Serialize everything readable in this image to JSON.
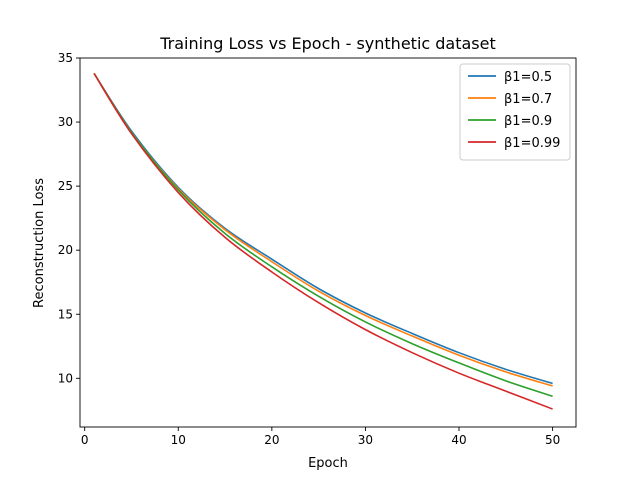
{
  "chart_data": {
    "type": "line",
    "title": "Training Loss vs Epoch - synthetic dataset",
    "xlabel": "Epoch",
    "ylabel": "Reconstruction Loss",
    "xlim": [
      -0.5,
      52.5
    ],
    "ylim": [
      6.2,
      35
    ],
    "xticks": [
      0,
      10,
      20,
      30,
      40,
      50
    ],
    "yticks": [
      10,
      15,
      20,
      25,
      30,
      35
    ],
    "grid": false,
    "legend_position": "top-right",
    "x": [
      1,
      5,
      10,
      15,
      20,
      25,
      30,
      35,
      40,
      45,
      50
    ],
    "series": [
      {
        "name": "β1=0.5",
        "color": "#1f77b4",
        "values": [
          33.8,
          29.3,
          24.9,
          21.7,
          19.3,
          17.0,
          15.1,
          13.5,
          12.0,
          10.7,
          9.6
        ]
      },
      {
        "name": "β1=0.7",
        "color": "#ff7f0e",
        "values": [
          33.8,
          29.2,
          24.8,
          21.6,
          19.1,
          16.8,
          14.9,
          13.3,
          11.8,
          10.5,
          9.4
        ]
      },
      {
        "name": "β1=0.9",
        "color": "#2ca02c",
        "values": [
          33.8,
          29.2,
          24.7,
          21.3,
          18.7,
          16.4,
          14.4,
          12.7,
          11.2,
          9.8,
          8.6
        ]
      },
      {
        "name": "β1=0.99",
        "color": "#d62728",
        "values": [
          33.8,
          29.1,
          24.5,
          21.0,
          18.3,
          15.9,
          13.8,
          12.0,
          10.4,
          9.0,
          7.6
        ]
      }
    ]
  }
}
